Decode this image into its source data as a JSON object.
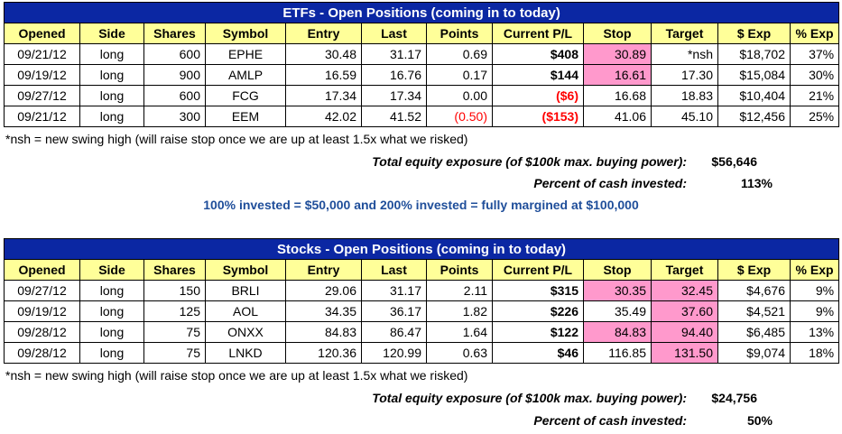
{
  "columns": [
    "Opened",
    "Side",
    "Shares",
    "Symbol",
    "Entry",
    "Last",
    "Points",
    "Current P/L",
    "Stop",
    "Target",
    "$ Exp",
    "% Exp"
  ],
  "etf": {
    "title": "ETFs - Open Positions (coming in to today)",
    "rows": [
      {
        "opened": "09/21/12",
        "side": "long",
        "shares": "600",
        "symbol": "EPHE",
        "entry": "30.48",
        "last": "31.17",
        "points": "0.69",
        "pl": "$408",
        "stop": "30.89",
        "target": "*nsh",
        "exp": "$18,702",
        "pexp": "37%",
        "points_neg": false,
        "pl_neg": false,
        "stop_hl": true,
        "target_hl": false
      },
      {
        "opened": "09/19/12",
        "side": "long",
        "shares": "900",
        "symbol": "AMLP",
        "entry": "16.59",
        "last": "16.76",
        "points": "0.17",
        "pl": "$144",
        "stop": "16.61",
        "target": "17.30",
        "exp": "$15,084",
        "pexp": "30%",
        "points_neg": false,
        "pl_neg": false,
        "stop_hl": true,
        "target_hl": false
      },
      {
        "opened": "09/27/12",
        "side": "long",
        "shares": "600",
        "symbol": "FCG",
        "entry": "17.34",
        "last": "17.34",
        "points": "0.00",
        "pl": "($6)",
        "stop": "16.68",
        "target": "18.83",
        "exp": "$10,404",
        "pexp": "21%",
        "points_neg": false,
        "pl_neg": true,
        "stop_hl": false,
        "target_hl": false
      },
      {
        "opened": "09/21/12",
        "side": "long",
        "shares": "300",
        "symbol": "EEM",
        "entry": "42.02",
        "last": "41.52",
        "points": "(0.50)",
        "pl": "($153)",
        "stop": "41.06",
        "target": "45.10",
        "exp": "$12,456",
        "pexp": "25%",
        "points_neg": true,
        "pl_neg": true,
        "stop_hl": false,
        "target_hl": false
      }
    ],
    "note": "*nsh = new swing high (will raise stop once we are up at least 1.5x what we risked)",
    "exposure_label": "Total equity exposure (of $100k max. buying power):",
    "exposure_value": "$56,646",
    "percent_label": "Percent of cash invested:",
    "percent_value": "113%",
    "info": "100% invested = $50,000 and 200% invested = fully margined at $100,000"
  },
  "stocks": {
    "title": "Stocks - Open Positions (coming in to today)",
    "rows": [
      {
        "opened": "09/27/12",
        "side": "long",
        "shares": "150",
        "symbol": "BRLI",
        "entry": "29.06",
        "last": "31.17",
        "points": "2.11",
        "pl": "$315",
        "stop": "30.35",
        "target": "32.45",
        "exp": "$4,676",
        "pexp": "9%",
        "points_neg": false,
        "pl_neg": false,
        "stop_hl": true,
        "target_hl": true
      },
      {
        "opened": "09/19/12",
        "side": "long",
        "shares": "125",
        "symbol": "AOL",
        "entry": "34.35",
        "last": "36.17",
        "points": "1.82",
        "pl": "$226",
        "stop": "35.49",
        "target": "37.60",
        "exp": "$4,521",
        "pexp": "9%",
        "points_neg": false,
        "pl_neg": false,
        "stop_hl": false,
        "target_hl": true
      },
      {
        "opened": "09/28/12",
        "side": "long",
        "shares": "75",
        "symbol": "ONXX",
        "entry": "84.83",
        "last": "86.47",
        "points": "1.64",
        "pl": "$122",
        "stop": "84.83",
        "target": "94.40",
        "exp": "$6,485",
        "pexp": "13%",
        "points_neg": false,
        "pl_neg": false,
        "stop_hl": true,
        "target_hl": true
      },
      {
        "opened": "09/28/12",
        "side": "long",
        "shares": "75",
        "symbol": "LNKD",
        "entry": "120.36",
        "last": "120.99",
        "points": "0.63",
        "pl": "$46",
        "stop": "116.85",
        "target": "131.50",
        "exp": "$9,074",
        "pexp": "18%",
        "points_neg": false,
        "pl_neg": false,
        "stop_hl": false,
        "target_hl": true
      }
    ],
    "note": "*nsh = new swing high (will raise stop once we are up at least 1.5x what we risked)",
    "exposure_label": "Total equity exposure (of $100k max. buying power):",
    "exposure_value": "$24,756",
    "percent_label": "Percent of cash invested:",
    "percent_value": "50%"
  },
  "colors": {
    "title_bg": "#0b27a3",
    "header_bg": "#ffff99",
    "highlight": "#ff99cc",
    "negative": "#ff0000",
    "info_text": "#1f4e9a"
  }
}
